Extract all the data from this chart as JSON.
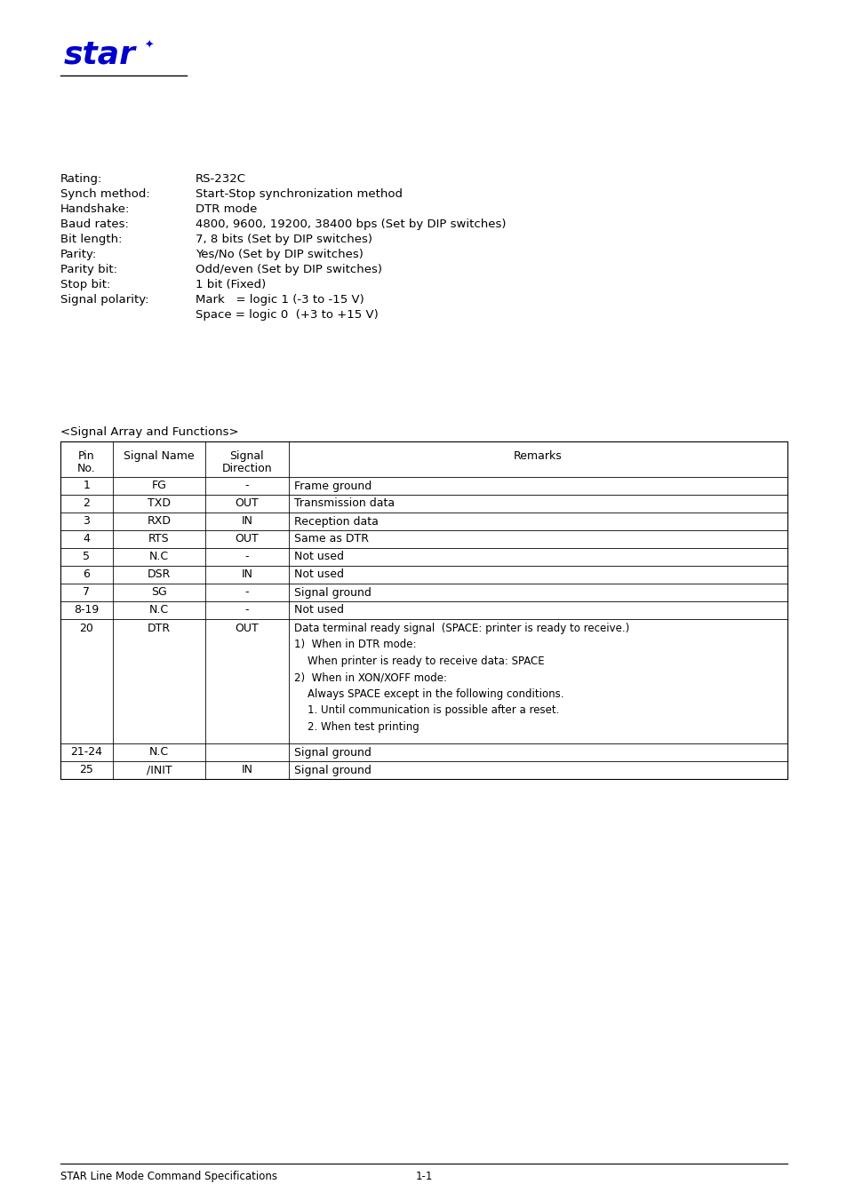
{
  "bg_color": "#ffffff",
  "logo_color": "#0000cc",
  "specs": [
    [
      "Rating:",
      "RS-232C"
    ],
    [
      "Synch method:",
      "Start-Stop synchronization method"
    ],
    [
      "Handshake:",
      "DTR mode"
    ],
    [
      "Baud rates:",
      "4800, 9600, 19200, 38400 bps (Set by DIP switches)"
    ],
    [
      "Bit length:",
      "7, 8 bits (Set by DIP switches)"
    ],
    [
      "Parity:",
      "Yes/No (Set by DIP switches)"
    ],
    [
      "Parity bit:",
      "Odd/even (Set by DIP switches)"
    ],
    [
      "Stop bit:",
      "1 bit (Fixed)"
    ],
    [
      "Signal polarity:",
      "Mark   = logic 1 (-3 to -15 V)"
    ],
    [
      "",
      "Space = logic 0  (+3 to +15 V)"
    ]
  ],
  "table_title": "<Signal Array and Functions>",
  "table_rows": [
    [
      "1",
      "FG",
      "-",
      "Frame ground"
    ],
    [
      "2",
      "TXD",
      "OUT",
      "Transmission data"
    ],
    [
      "3",
      "RXD",
      "IN",
      "Reception data"
    ],
    [
      "4",
      "RTS",
      "OUT",
      "Same as DTR"
    ],
    [
      "5",
      "N.C",
      "-",
      "Not used"
    ],
    [
      "6",
      "DSR",
      "IN",
      "Not used"
    ],
    [
      "7",
      "SG",
      "-",
      "Signal ground"
    ],
    [
      "8-19",
      "N.C",
      "-",
      "Not used"
    ],
    [
      "20",
      "DTR",
      "OUT",
      "Data terminal ready signal  (SPACE: printer is ready to receive.)\n1)  When in DTR mode:\n    When printer is ready to receive data: SPACE\n2)  When in XON/XOFF mode:\n    Always SPACE except in the following conditions.\n    1. Until communication is possible after a reset.\n    2. When test printing"
    ],
    [
      "21-24",
      "N.C",
      "",
      "Signal ground"
    ],
    [
      "25",
      "/INIT",
      "IN",
      "Signal ground"
    ]
  ],
  "footer_text_left": "STAR Line Mode Command Specifications",
  "footer_text_center": "1-1"
}
